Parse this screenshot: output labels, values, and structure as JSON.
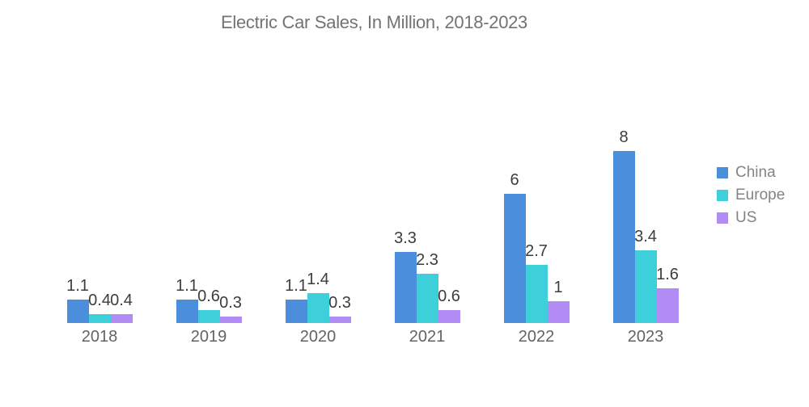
{
  "page": {
    "background_color": "#ffffff"
  },
  "chart_data": {
    "type": "bar",
    "title": "Electric Car Sales, In Million, 2018-2023",
    "title_color": "#737373",
    "categories": [
      "2018",
      "2019",
      "2020",
      "2021",
      "2022",
      "2023"
    ],
    "series": [
      {
        "name": "China",
        "color": "#4A8EDC",
        "values": [
          1.1,
          1.1,
          1.1,
          3.3,
          6,
          8
        ]
      },
      {
        "name": "Europe",
        "color": "#3ED0DA",
        "values": [
          0.4,
          0.6,
          1.4,
          2.3,
          2.7,
          3.4
        ]
      },
      {
        "name": "US",
        "color": "#B28CF5",
        "values": [
          0.4,
          0.3,
          0.3,
          0.6,
          1,
          1.6
        ]
      }
    ],
    "value_labels_visible": true,
    "value_label_color": "#3d3d3d",
    "axis_label_color": "#636363",
    "legend_text_color": "#848484",
    "xlabel": "",
    "ylabel": "",
    "ylim": [
      0,
      8.5
    ],
    "grid": false,
    "axis_lines": false,
    "legend_position": "right"
  }
}
